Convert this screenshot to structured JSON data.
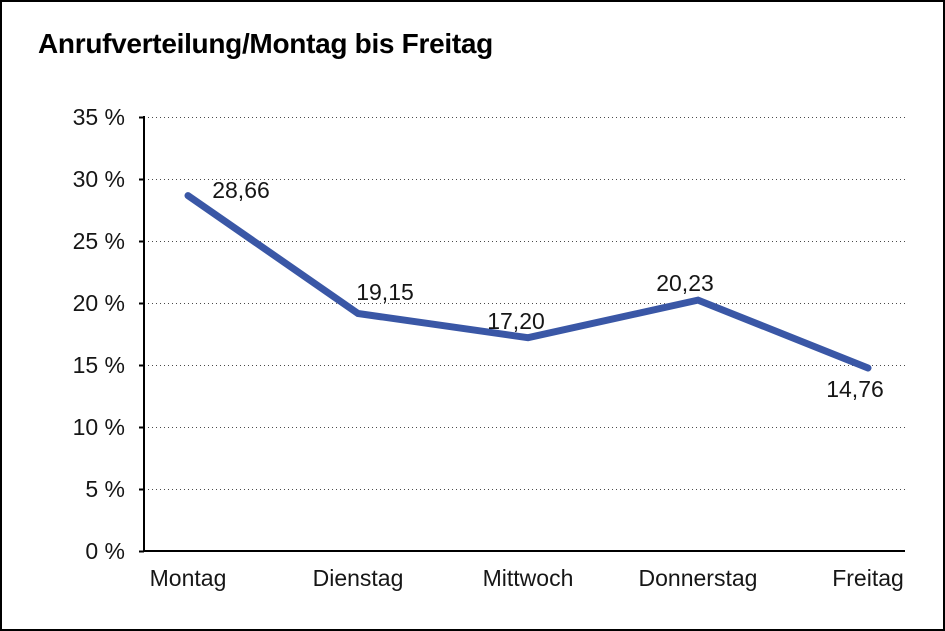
{
  "chart_data": {
    "type": "line",
    "title": "Anrufverteilung/Montag bis Freitag",
    "categories": [
      "Montag",
      "Dienstag",
      "Mittwoch",
      "Donnerstag",
      "Freitag"
    ],
    "values": [
      28.66,
      19.15,
      17.2,
      20.23,
      14.76
    ],
    "value_labels": [
      "28,66",
      "19,15",
      "17,20",
      "20,23",
      "14,76"
    ],
    "y_ticks": [
      0,
      5,
      10,
      15,
      20,
      25,
      30,
      35
    ],
    "y_tick_labels": [
      "0 %",
      "5 %",
      "10 %",
      "15 %",
      "20 %",
      "25 %",
      "30 %",
      "35 %"
    ],
    "ylim": [
      0,
      35
    ],
    "xlabel": "",
    "ylabel": "",
    "grid": "horizontal-dotted",
    "legend": "none",
    "line_color": "#3a57a6",
    "axis_color": "#000000",
    "gridline_color": "#4a4a4a",
    "text_color": "#161616"
  }
}
